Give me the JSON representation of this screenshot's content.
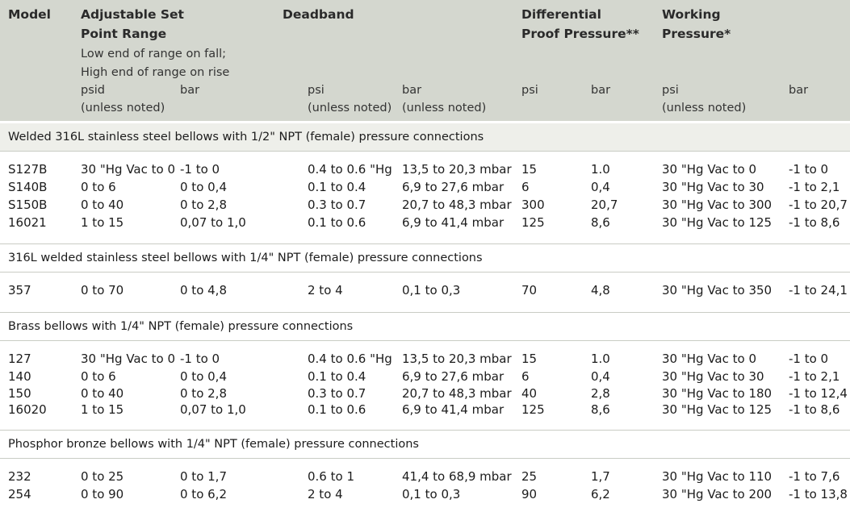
{
  "header": {
    "model": "Model",
    "set_point_line1": "Adjustable Set",
    "set_point_line2": "Point Range",
    "set_point_note1": "Low end of range on fall;",
    "set_point_note2": "High end of range on rise",
    "deadband": "Deadband",
    "diff_line1": "Differential",
    "diff_line2": "Proof Pressure**",
    "work_line1": "Working",
    "work_line2": "Pressure*",
    "units": {
      "sp_psid": "psid",
      "sp_psid_note": "(unless noted)",
      "sp_bar": "bar",
      "db_psi": "psi",
      "db_psi_note": "(unless noted)",
      "db_bar": "bar",
      "db_bar_note": "(unless noted)",
      "dp_psi": "psi",
      "dp_bar": "bar",
      "wp_psi": "psi",
      "wp_psi_note": "(unless noted)",
      "wp_bar": "bar"
    }
  },
  "sections": [
    {
      "title": "Welded 316L stainless steel bellows with 1/2\" NPT (female) pressure connections",
      "rows": [
        [
          "S127B",
          "30 \"Hg Vac to 0",
          "-1 to 0",
          "0.4 to 0.6 \"Hg",
          "13,5 to 20,3 mbar",
          "15",
          "1.0",
          "30 \"Hg Vac to 0",
          "-1 to 0"
        ],
        [
          "S140B",
          "0 to 6",
          "0 to 0,4",
          "0.1 to 0.4",
          "6,9 to 27,6 mbar",
          "6",
          "0,4",
          "30 \"Hg Vac to 30",
          "-1 to 2,1"
        ],
        [
          "S150B",
          "0 to 40",
          "0 to 2,8",
          "0.3 to 0.7",
          "20,7 to 48,3 mbar",
          "300",
          "20,7",
          "30 \"Hg Vac to 300",
          "-1 to 20,7"
        ],
        [
          "16021",
          "1 to 15",
          "0,07 to 1,0",
          "0.1 to 0.6",
          "6,9 to 41,4 mbar",
          "125",
          "8,6",
          "30 \"Hg Vac to 125",
          "-1 to 8,6"
        ]
      ]
    },
    {
      "title": "316L welded stainless steel bellows with 1/4\" NPT (female) pressure connections",
      "rows": [
        [
          "357",
          "0 to 70",
          "0 to 4,8",
          "2 to 4",
          "0,1 to 0,3",
          "70",
          "4,8",
          "30 \"Hg Vac to 350",
          "-1 to 24,1"
        ]
      ]
    },
    {
      "title": "Brass bellows with 1/4\" NPT (female) pressure connections",
      "rows": [
        [
          "127",
          "30 \"Hg Vac to 0",
          "-1 to 0",
          "0.4 to 0.6 \"Hg",
          "13,5 to 20,3 mbar",
          "15",
          "1.0",
          "30 \"Hg Vac to 0",
          "-1 to 0"
        ],
        [
          "140",
          "0 to 6",
          "0 to 0,4",
          "0.1 to 0.4",
          "6,9 to 27,6 mbar",
          "6",
          "0,4",
          "30 \"Hg Vac to 30",
          "-1 to 2,1"
        ],
        [
          "150",
          "0 to 40",
          "0 to 2,8",
          "0.3 to 0.7",
          "20,7 to 48,3 mbar",
          "40",
          "2,8",
          "30 \"Hg Vac to 180",
          "-1 to 12,4"
        ],
        [
          "16020",
          "1 to 15",
          "0,07 to 1,0",
          "0.1 to 0.6",
          "6,9 to 41,4 mbar",
          "125",
          "8,6",
          "30 \"Hg Vac to 125",
          "-1 to 8,6"
        ]
      ]
    },
    {
      "title": "Phosphor bronze bellows with 1/4\" NPT (female) pressure connections",
      "rows": [
        [
          "232",
          "0 to 25",
          "0 to 1,7",
          "0.6 to 1",
          "41,4 to 68,9 mbar",
          "25",
          "1,7",
          "30 \"Hg Vac to 110",
          "-1 to 7,6"
        ],
        [
          "254",
          "0 to 90",
          "0 to 6,2",
          "2 to 4",
          "0,1 to 0,3",
          "90",
          "6,2",
          "30 \"Hg Vac to 200",
          "-1 to 13,8"
        ]
      ]
    }
  ]
}
